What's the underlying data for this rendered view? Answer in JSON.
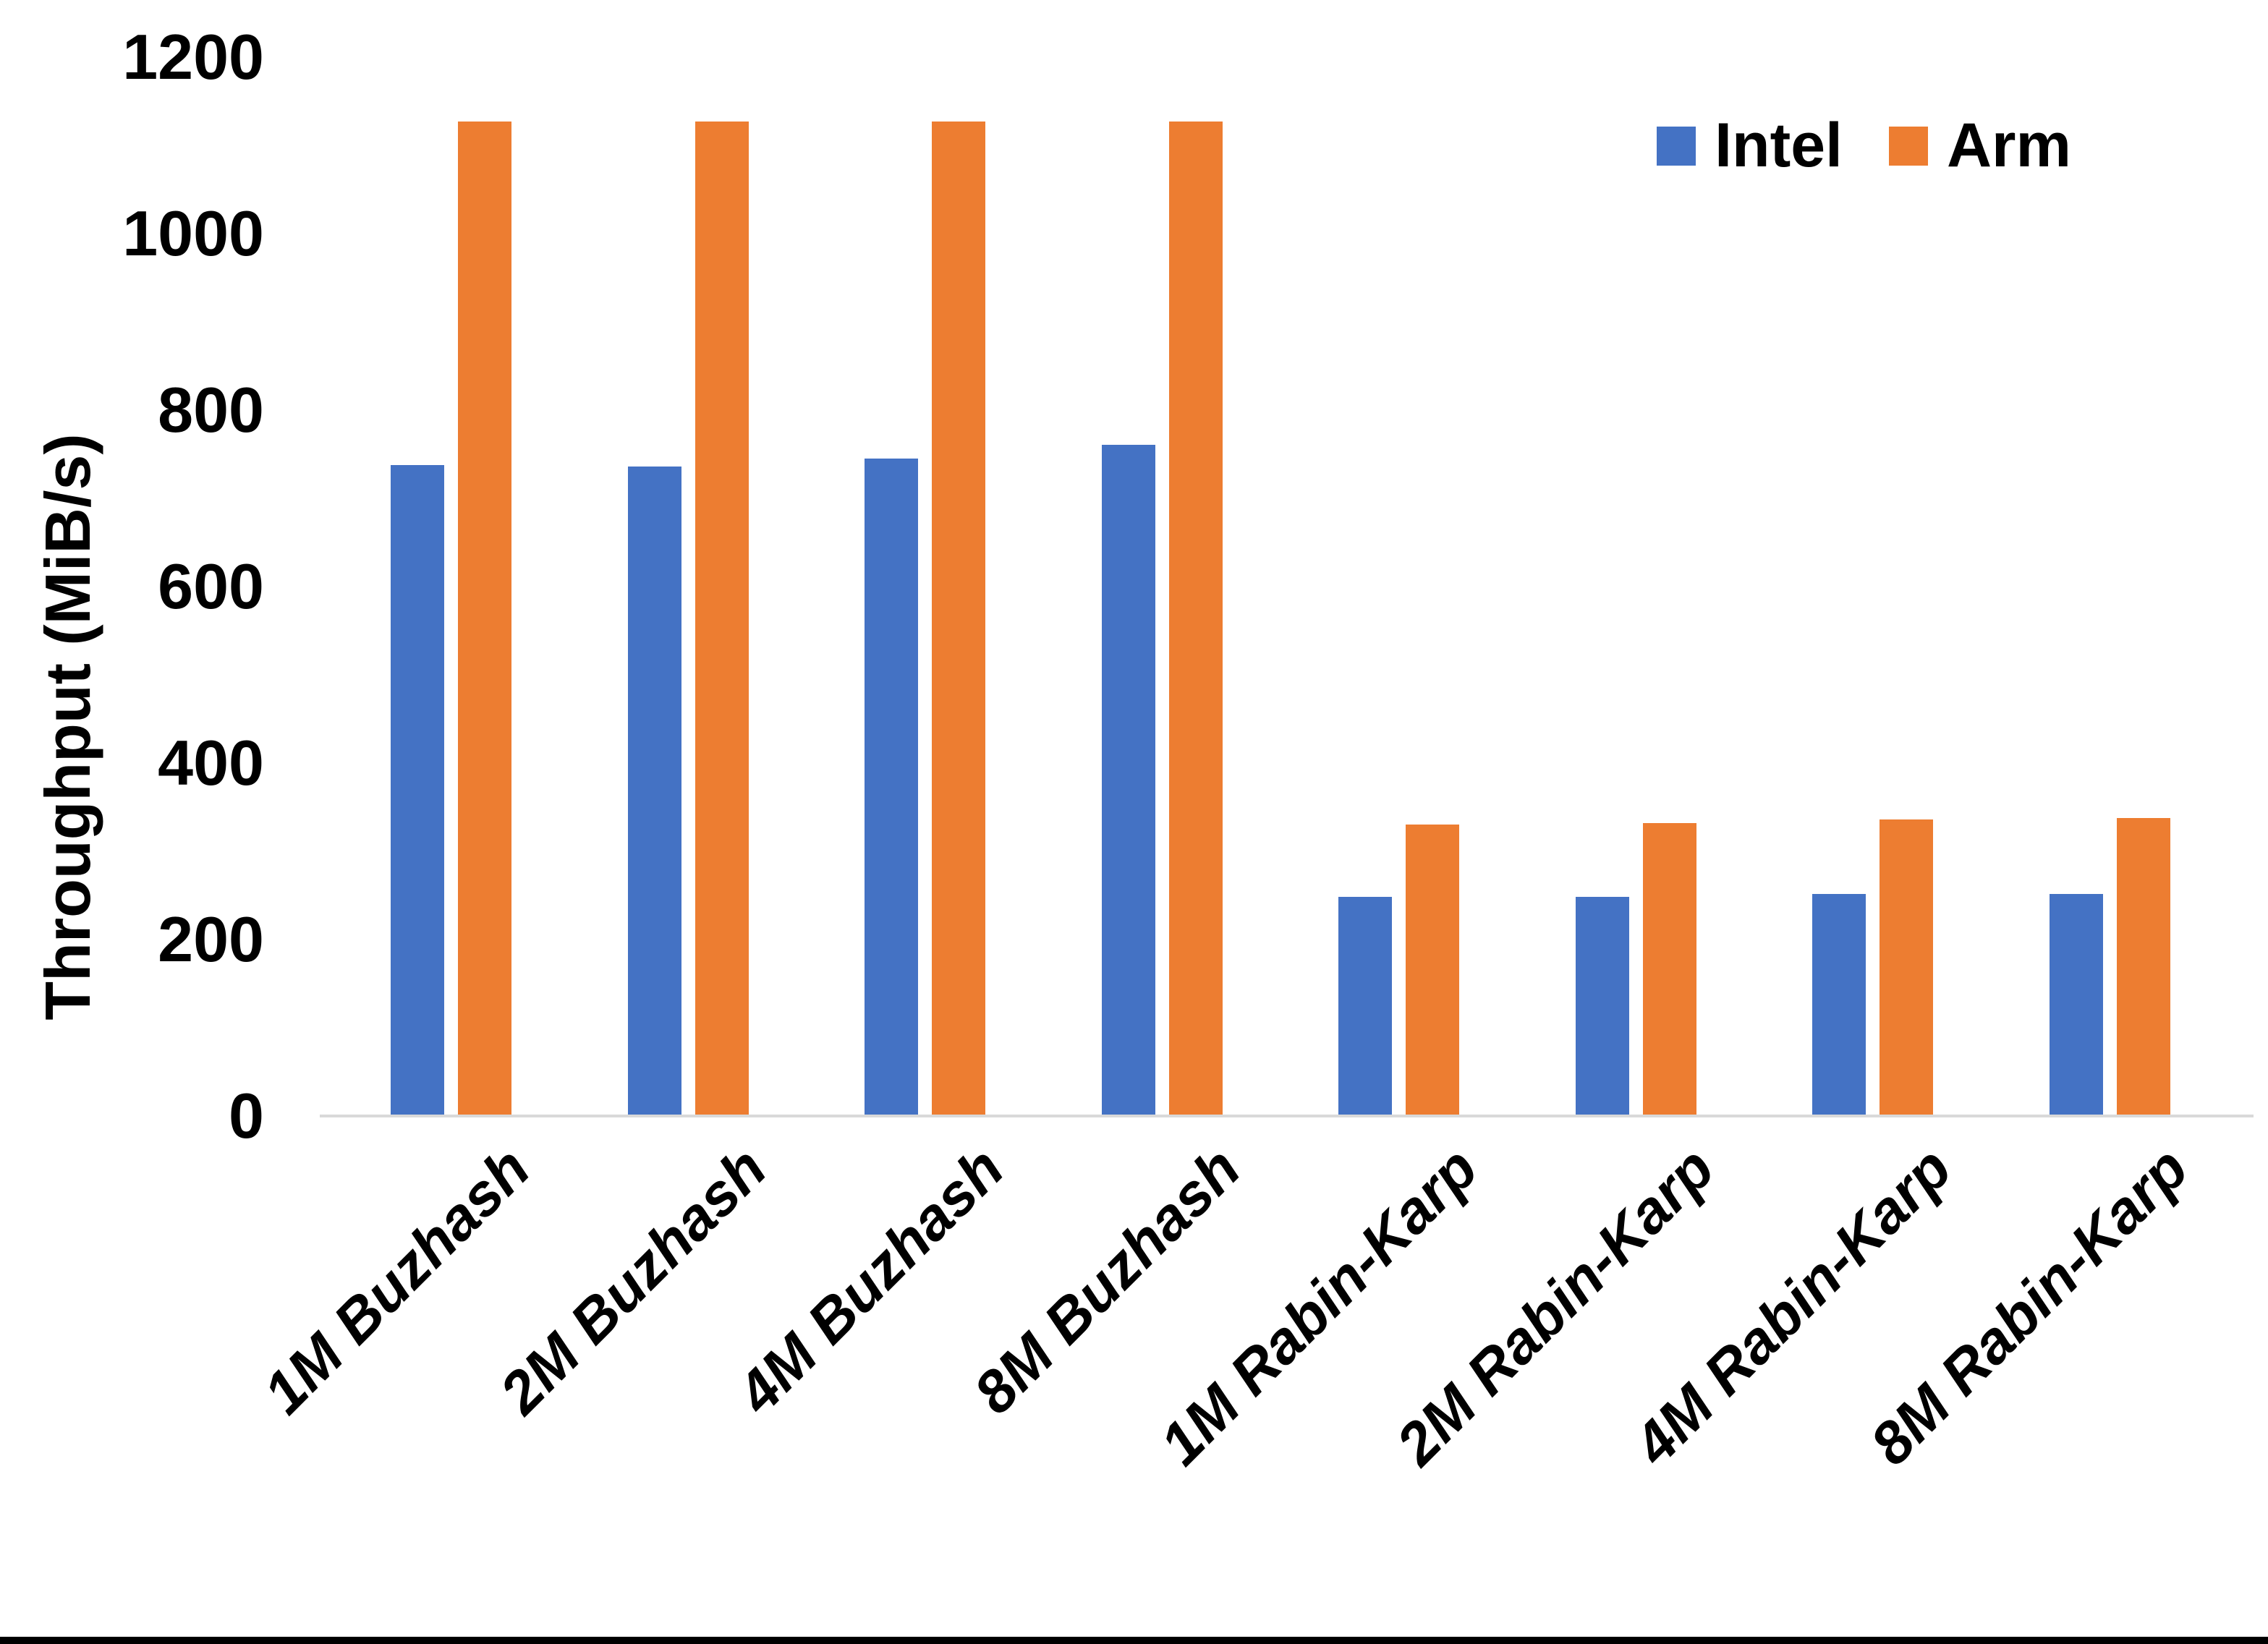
{
  "chart_data": {
    "type": "bar",
    "title": "",
    "xlabel": "",
    "ylabel": "Throughput (MiB/s)",
    "ylim": [
      0,
      1200
    ],
    "yticks": [
      0,
      200,
      400,
      600,
      800,
      1000,
      1200
    ],
    "grid": false,
    "legend_position": "top-right",
    "x_tick_rotation_deg": 45,
    "x_tick_font_style": "italic",
    "axis_line_color": "#D9D9D9",
    "background_color": "#FFFFFF",
    "text_color": "#000000",
    "bottom_border_color": "#000000",
    "categories": [
      "1M Buzhash",
      "2M Buzhash",
      "4M Buzhash",
      "8M Buzhash",
      "1M Rabin-Karp",
      "2M Rabin-Karp",
      "4M Rabin-Karp",
      "8M Rabin-Karp"
    ],
    "series": [
      {
        "name": "Intel",
        "color": "#4472C4",
        "values": [
          738,
          736,
          745,
          761,
          248,
          248,
          252,
          252
        ]
      },
      {
        "name": "Arm",
        "color": "#ED7D31",
        "values": [
          1127,
          1127,
          1127,
          1127,
          330,
          332,
          336,
          338
        ]
      }
    ]
  }
}
